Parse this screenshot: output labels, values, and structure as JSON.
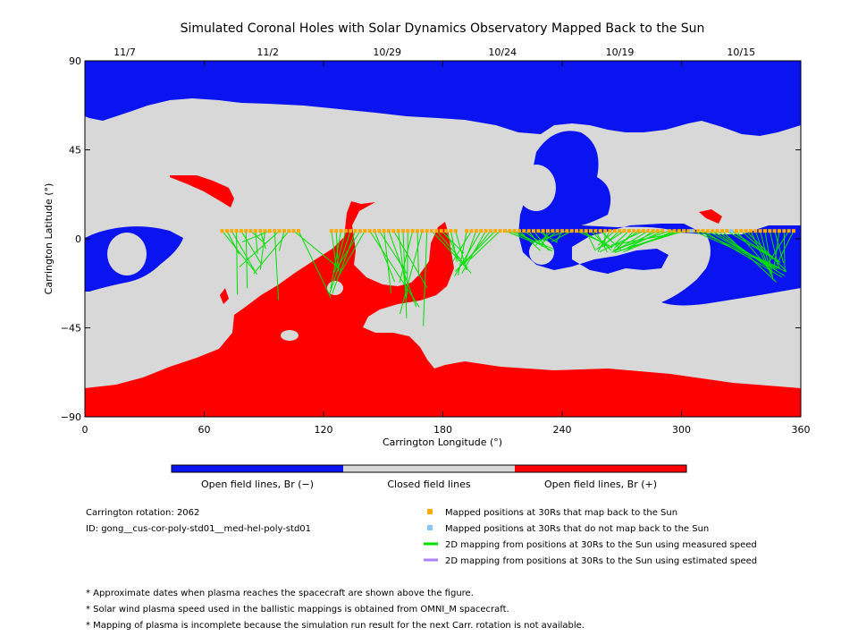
{
  "chart_data": {
    "type": "map",
    "title": "Simulated Coronal Holes with Solar Dynamics Observatory Mapped Back to the Sun",
    "xlabel": "Carrington Longitude (°)",
    "ylabel": "Carrington Latitude (°)",
    "xlim": [
      0,
      360
    ],
    "ylim": [
      -90,
      90
    ],
    "x_ticks": [
      0,
      60,
      120,
      180,
      240,
      300,
      360
    ],
    "y_ticks": [
      -90,
      -45,
      0,
      45,
      90
    ],
    "date_ticks": [
      {
        "label": "11/7",
        "lon": 20
      },
      {
        "label": "11/2",
        "lon": 92
      },
      {
        "label": "10/29",
        "lon": 152
      },
      {
        "label": "10/24",
        "lon": 210
      },
      {
        "label": "10/19",
        "lon": 269
      },
      {
        "label": "10/15",
        "lon": 330
      }
    ],
    "colorbar": [
      {
        "label": "Open field lines, Br (−)",
        "color": "#0a14f0"
      },
      {
        "label": "Closed field lines",
        "color": "#d8d8d8"
      },
      {
        "label": "Open field lines, Br (+)",
        "color": "#ff0000"
      }
    ],
    "colors": {
      "open_negative": "#0a14f0",
      "closed": "#d8d8d8",
      "open_positive": "#ff0000",
      "mapped_point": "#ffaa00",
      "unmapped_point": "#88c8ff",
      "measured_line": "#00e000",
      "estimated_line": "#b080ff"
    },
    "mapped_positions": {
      "lat": 4,
      "segments": [
        {
          "start_lon": 69,
          "end_lon": 108
        },
        {
          "start_lon": 124,
          "end_lon": 188
        },
        {
          "start_lon": 192,
          "end_lon": 292
        },
        {
          "start_lon": 294,
          "end_lon": 358
        }
      ]
    },
    "unmapped_positions": {
      "lat": 4,
      "lon": [
        305,
        325
      ]
    },
    "footpoint_clusters": [
      {
        "lon": 82,
        "lat": 0,
        "spread_lon": 24,
        "spread_lat": 32
      },
      {
        "lon": 125,
        "lat": -10,
        "spread_lon": 10,
        "spread_lat": 20
      },
      {
        "lon": 159,
        "lat": -15,
        "spread_lon": 20,
        "spread_lat": 30
      },
      {
        "lon": 188,
        "lat": -7,
        "spread_lon": 10,
        "spread_lat": 12
      },
      {
        "lon": 230,
        "lat": -1,
        "spread_lon": 14,
        "spread_lat": 6
      },
      {
        "lon": 262,
        "lat": -3,
        "spread_lon": 18,
        "spread_lat": 4
      },
      {
        "lon": 346,
        "lat": -10,
        "spread_lon": 10,
        "spread_lat": 12
      }
    ]
  },
  "info": {
    "rotation": "Carrington rotation: 2062",
    "run_id": "ID: gong__cus-cor-poly-std01__med-hel-poly-std01"
  },
  "legend": [
    {
      "label": "Mapped positions at 30Rs that map back to the Sun",
      "symbol": "square",
      "color": "#ffaa00"
    },
    {
      "label": "Mapped positions at 30Rs that do not map back to the Sun",
      "symbol": "square",
      "color": "#88c8ff"
    },
    {
      "label": "2D mapping from positions at 30Rs to the Sun using measured speed",
      "symbol": "line",
      "color": "#00e000"
    },
    {
      "label": "2D mapping from positions at 30Rs to the Sun using estimated speed",
      "symbol": "line",
      "color": "#b080ff"
    }
  ],
  "footnotes": [
    "* Approximate dates when plasma reaches the spacecraft are shown above the figure.",
    "* Solar wind plasma speed used in the ballistic mappings is obtained from OMNI_M spacecraft.",
    "* Mapping of plasma is incomplete because the simulation run result for the next Carr. rotation is not available."
  ]
}
